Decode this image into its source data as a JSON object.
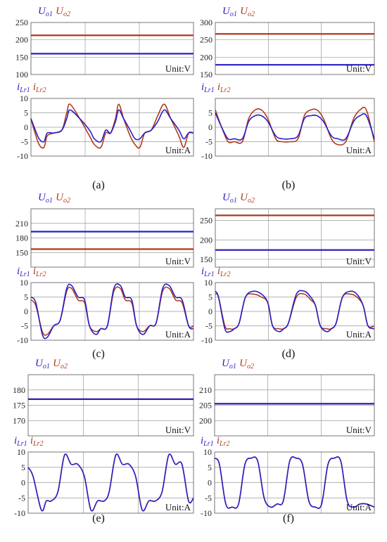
{
  "colors": {
    "series1": "#2a1fc4",
    "series2": "#b03a1c",
    "grid": "#9a9a9a",
    "axis": "#555555"
  },
  "chart_data": [
    {
      "id": "a",
      "caption": "(a)",
      "voltage": {
        "type": "line",
        "unit": "Unit:V",
        "ylim": [
          100,
          250
        ],
        "yticks": [
          100,
          150,
          200,
          250
        ],
        "legend": [
          {
            "main": "U",
            "sub": "o1"
          },
          {
            "main": "U",
            "sub": "o2"
          }
        ],
        "series": [
          {
            "legend_index": 0,
            "values": [
              160,
              160
            ]
          },
          {
            "legend_index": 1,
            "values": [
              213,
              213
            ]
          }
        ]
      },
      "current": {
        "type": "line",
        "unit": "Unit:A",
        "ylim": [
          -10,
          10
        ],
        "yticks": [
          -10,
          -5,
          0,
          5,
          10
        ],
        "legend": [
          {
            "main": "i",
            "sub": "Lr1"
          },
          {
            "main": "i",
            "sub": "Lr2"
          }
        ],
        "x": [
          0,
          2,
          5,
          8,
          10,
          14,
          19,
          22,
          24,
          30,
          36,
          39,
          43,
          46,
          49,
          52,
          54,
          57,
          61,
          64,
          67,
          70,
          74,
          78,
          82,
          86,
          91,
          94,
          97,
          100
        ],
        "series": [
          {
            "legend_index": 0,
            "values": [
              3,
              0,
              -4,
              -5,
              -2,
              -2,
              -1,
              3,
              6,
              3,
              -1,
              -4,
              -5,
              -1,
              -2,
              2,
              6,
              3,
              -1,
              -4,
              -4,
              -2,
              -1,
              2,
              6,
              3,
              -1,
              -4,
              -2,
              -2
            ]
          },
          {
            "legend_index": 1,
            "values": [
              3,
              -1,
              -6,
              -7,
              -3,
              -2,
              -1,
              5,
              8,
              3,
              -3,
              -6,
              -7,
              -2,
              -2,
              3,
              8,
              3,
              -3,
              -6,
              -7,
              -2,
              -1,
              4,
              8,
              3,
              -3,
              -7,
              -2,
              -2
            ]
          }
        ]
      }
    },
    {
      "id": "b",
      "caption": "(b)",
      "voltage": {
        "type": "line",
        "unit": "Unit:V",
        "ylim": [
          150,
          300
        ],
        "yticks": [
          150,
          200,
          250,
          300
        ],
        "legend": [
          {
            "main": "U",
            "sub": "o1"
          },
          {
            "main": "U",
            "sub": "o2"
          }
        ],
        "series": [
          {
            "legend_index": 0,
            "values": [
              178,
              178
            ]
          },
          {
            "legend_index": 1,
            "values": [
              267,
              267
            ]
          }
        ]
      },
      "current": {
        "type": "line",
        "unit": "Unit:A",
        "ylim": [
          -10,
          10
        ],
        "yticks": [
          -10,
          -5,
          0,
          5
        ],
        "legend": [
          {
            "main": "i",
            "sub": "Lr1"
          },
          {
            "main": "i",
            "sub": "Lr2"
          }
        ],
        "x": [
          0,
          4,
          8,
          12,
          17,
          21,
          25,
          29,
          33,
          38,
          42,
          47,
          52,
          56,
          60,
          64,
          68,
          73,
          77,
          82,
          87,
          91,
          95,
          100
        ],
        "series": [
          {
            "legend_index": 0,
            "values": [
              5,
              0,
              -4,
              -4,
              -4,
              2,
              4,
              4,
              2,
              -3,
              -4,
              -4,
              -3,
              3,
              4,
              4,
              2,
              -3,
              -4,
              -4,
              2,
              4,
              4,
              -4
            ]
          },
          {
            "legend_index": 1,
            "values": [
              6,
              0,
              -5,
              -5,
              -5,
              3,
              6,
              6,
              3,
              -4,
              -5,
              -5,
              -4,
              4,
              6,
              6,
              3,
              -4,
              -6,
              -5,
              3,
              6,
              6,
              -5
            ]
          }
        ]
      }
    },
    {
      "id": "c",
      "caption": "(c)",
      "voltage": {
        "type": "line",
        "unit": "Unit:V",
        "ylim": [
          120,
          240
        ],
        "yticks": [
          150,
          180,
          210
        ],
        "legend": [
          {
            "main": "U",
            "sub": "o1"
          },
          {
            "main": "U",
            "sub": "o2"
          }
        ],
        "series": [
          {
            "legend_index": 0,
            "values": [
              193,
              193
            ]
          },
          {
            "legend_index": 1,
            "values": [
              157,
              157
            ]
          }
        ]
      },
      "current": {
        "type": "line",
        "unit": "Unit:A",
        "ylim": [
          -10,
          10
        ],
        "yticks": [
          -10,
          -5,
          0,
          5,
          10
        ],
        "legend": [
          {
            "main": "i",
            "sub": "Lr1"
          },
          {
            "main": "i",
            "sub": "Lr2"
          }
        ],
        "x": [
          0,
          3,
          7,
          10,
          14,
          18,
          22,
          25,
          29,
          33,
          36,
          40,
          43,
          47,
          51,
          55,
          58,
          62,
          65,
          69,
          73,
          77,
          81,
          85,
          89,
          93,
          97,
          100
        ],
        "series": [
          {
            "legend_index": 0,
            "values": [
              5,
              3,
              -8,
              -9,
              -5,
              -3,
              8,
              9,
              5,
              4,
              -5,
              -8,
              -6,
              -5,
              8,
              9,
              5,
              4,
              -5,
              -8,
              -5,
              -4,
              8,
              9,
              5,
              4,
              -5,
              -6
            ]
          },
          {
            "legend_index": 1,
            "values": [
              4,
              2,
              -7,
              -8,
              -5,
              -3,
              7,
              8,
              4,
              3,
              -5,
              -7,
              -6,
              -5,
              7,
              8,
              4,
              3,
              -5,
              -7,
              -5,
              -4,
              7,
              8,
              4,
              3,
              -5,
              -5
            ]
          }
        ]
      }
    },
    {
      "id": "d",
      "caption": "(d)",
      "voltage": {
        "type": "line",
        "unit": "Unit:V",
        "ylim": [
          130,
          280
        ],
        "yticks": [
          150,
          200,
          250
        ],
        "legend": [
          {
            "main": "U",
            "sub": "o1"
          },
          {
            "main": "U",
            "sub": "o2"
          }
        ],
        "series": [
          {
            "legend_index": 0,
            "values": [
              174,
              174
            ]
          },
          {
            "legend_index": 1,
            "values": [
              263,
              263
            ]
          }
        ]
      },
      "current": {
        "type": "line",
        "unit": "Unit:A",
        "ylim": [
          -10,
          10
        ],
        "yticks": [
          -10,
          -5,
          0,
          5,
          10
        ],
        "legend": [
          {
            "main": "i",
            "sub": "Lr1"
          },
          {
            "main": "i",
            "sub": "Lr2"
          }
        ],
        "x": [
          0,
          2,
          6,
          9,
          12,
          15,
          19,
          24,
          29,
          33,
          36,
          40,
          43,
          46,
          51,
          56,
          60,
          63,
          66,
          70,
          73,
          76,
          80,
          85,
          89,
          93,
          96,
          100
        ],
        "series": [
          {
            "legend_index": 0,
            "values": [
              7,
              5,
              -6,
              -7,
              -6,
              -4,
              5,
              7,
              6,
              3,
              -5,
              -7,
              -6,
              -4,
              6,
              7,
              5,
              2,
              -5,
              -7,
              -6,
              -4,
              5,
              7,
              6,
              2,
              -5,
              -6
            ]
          },
          {
            "legend_index": 1,
            "values": [
              6,
              5,
              -5,
              -6,
              -6,
              -4,
              5,
              6,
              5,
              3,
              -5,
              -6,
              -6,
              -4,
              5,
              6,
              4,
              2,
              -5,
              -6,
              -6,
              -4,
              5,
              6,
              5,
              2,
              -5,
              -5
            ]
          }
        ]
      }
    },
    {
      "id": "e",
      "caption": "(e)",
      "voltage": {
        "type": "line",
        "unit": "Unit:V",
        "ylim": [
          165,
          185
        ],
        "yticks": [
          170,
          175,
          180
        ],
        "legend": [
          {
            "main": "U",
            "sub": "o1"
          },
          {
            "main": "U",
            "sub": "o2"
          }
        ],
        "series": [
          {
            "legend_index": 0,
            "values": [
              177,
              177
            ]
          },
          {
            "legend_index": 1,
            "values": [
              177,
              177
            ]
          }
        ]
      },
      "current": {
        "type": "line",
        "unit": "Unit:A",
        "ylim": [
          -10,
          10
        ],
        "yticks": [
          -10,
          -5,
          0,
          5,
          10
        ],
        "legend": [
          {
            "main": "i",
            "sub": "Lr1"
          },
          {
            "main": "i",
            "sub": "Lr2"
          }
        ],
        "x": [
          0,
          3,
          8,
          11,
          14,
          18,
          22,
          26,
          30,
          34,
          38,
          42,
          46,
          49,
          53,
          57,
          61,
          65,
          69,
          73,
          77,
          81,
          85,
          89,
          93,
          97,
          100
        ],
        "series": [
          {
            "legend_index": 0,
            "values": [
              5,
              2,
              -9,
              -6,
              -6,
              -3,
              9,
              6,
              6,
              2,
              -9,
              -6,
              -6,
              -3,
              9,
              6,
              6,
              2,
              -9,
              -6,
              -6,
              -3,
              9,
              6,
              6,
              -6,
              -5
            ]
          },
          {
            "legend_index": 1,
            "values": [
              5,
              2,
              -9,
              -6,
              -6,
              -3,
              9,
              6,
              6,
              2,
              -9,
              -6,
              -6,
              -3,
              9,
              6,
              6,
              2,
              -9,
              -6,
              -6,
              -3,
              9,
              6,
              6,
              -6,
              -5
            ]
          }
        ]
      }
    },
    {
      "id": "f",
      "caption": "(f)",
      "voltage": {
        "type": "line",
        "unit": "Unit:V",
        "ylim": [
          195,
          215
        ],
        "yticks": [
          200,
          205,
          210
        ],
        "legend": [
          {
            "main": "U",
            "sub": "o1"
          },
          {
            "main": "U",
            "sub": "o2"
          }
        ],
        "series": [
          {
            "legend_index": 0,
            "values": [
              205.5,
              205.5
            ]
          },
          {
            "legend_index": 1,
            "values": [
              205.5,
              205.5
            ]
          }
        ]
      },
      "current": {
        "type": "line",
        "unit": "Unit:A",
        "ylim": [
          -10,
          10
        ],
        "yticks": [
          -10,
          -5,
          0,
          5,
          10
        ],
        "legend": [
          {
            "main": "i",
            "sub": "Lr1"
          },
          {
            "main": "i",
            "sub": "Lr2"
          }
        ],
        "x": [
          0,
          3,
          7,
          11,
          15,
          19,
          23,
          27,
          31,
          35,
          39,
          43,
          47,
          51,
          55,
          59,
          63,
          67,
          71,
          75,
          79,
          83,
          87,
          91,
          95,
          100
        ],
        "series": [
          {
            "legend_index": 0,
            "values": [
              8,
              6,
              -7,
              -8,
              -7,
              6,
              8,
              7,
              -5,
              -8,
              -7,
              -6,
              7,
              8,
              6,
              -6,
              -8,
              -7,
              6,
              8,
              7,
              -6,
              -8,
              -7,
              -7,
              -8
            ]
          },
          {
            "legend_index": 1,
            "values": [
              8,
              6,
              -7,
              -8,
              -7,
              6,
              8,
              7,
              -5,
              -8,
              -7,
              -6,
              7,
              8,
              6,
              -6,
              -8,
              -7,
              6,
              8,
              7,
              -6,
              -8,
              -7,
              -7,
              -8
            ]
          }
        ]
      }
    }
  ]
}
